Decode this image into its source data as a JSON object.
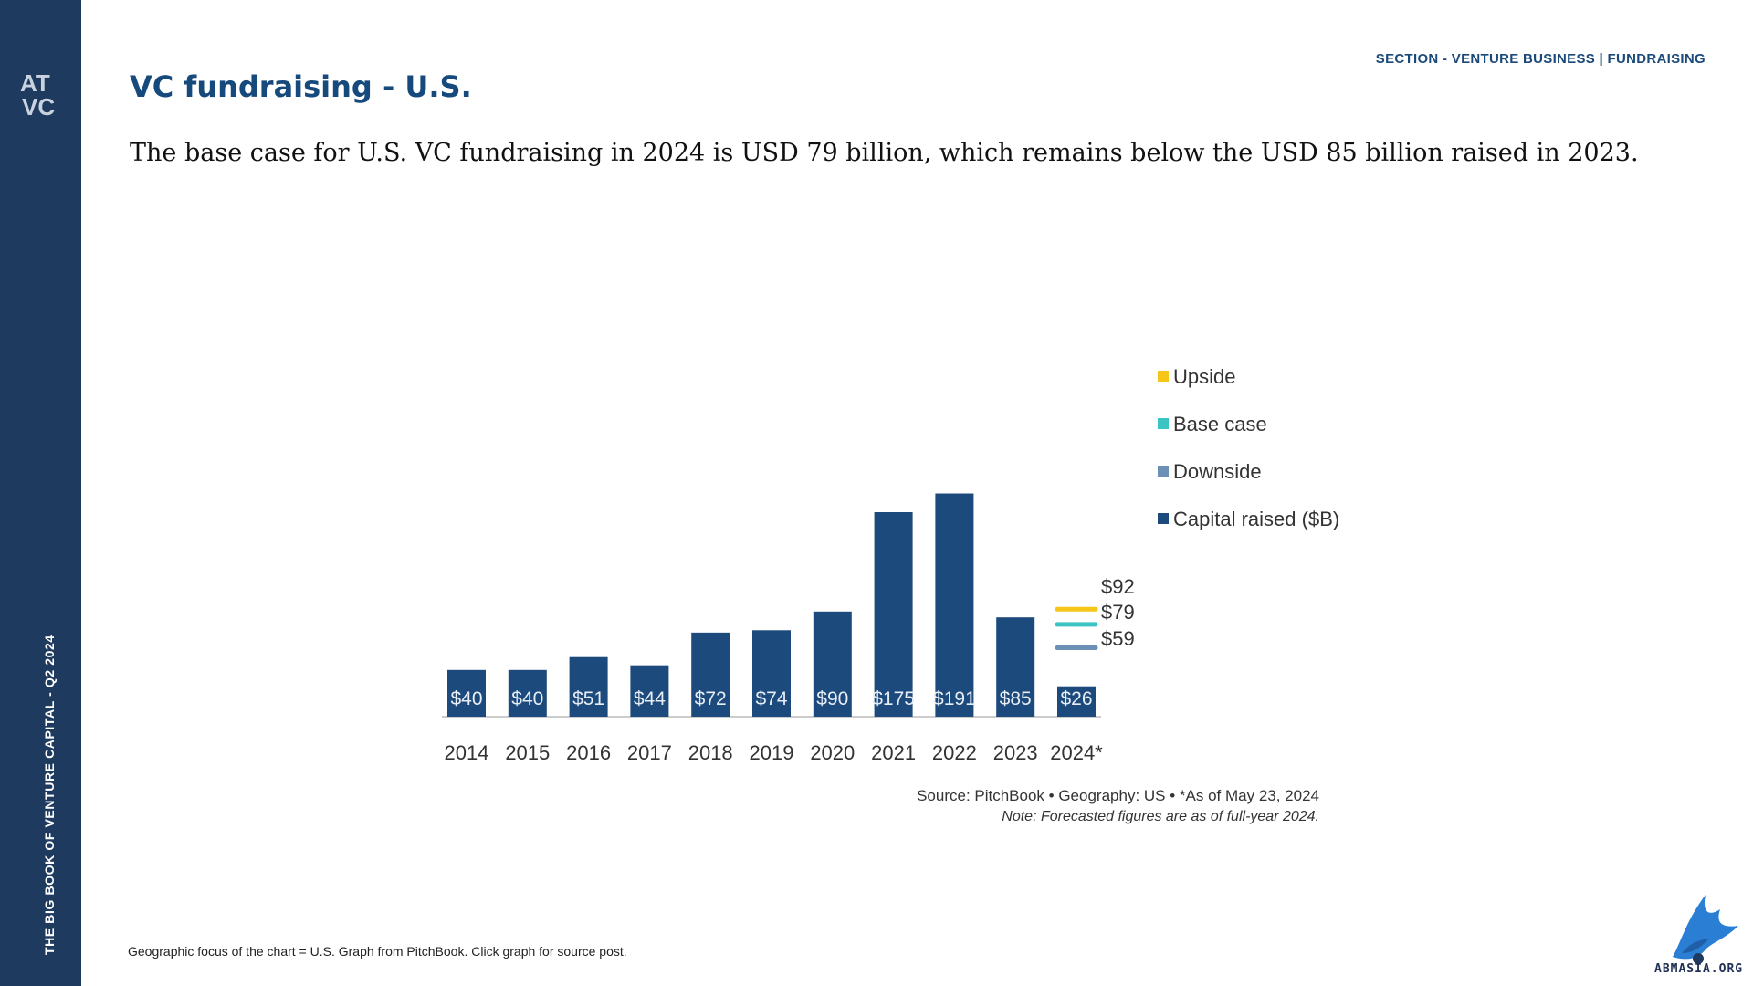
{
  "colors": {
    "sidebar": "#1f3a5f",
    "title": "#174a7c",
    "bar": "#1d4a7c",
    "upside": "#f5c518",
    "base_case": "#3cc4c4",
    "downside": "#6b8fb5"
  },
  "sidebar": {
    "logo_icon": "atvc-logo-icon",
    "vertical_text": "THE BIG BOOK OF VENTURE CAPITAL - Q2 2024"
  },
  "header": {
    "section": "SECTION - VENTURE BUSINESS | FUNDRAISING",
    "title": "VC fundraising - U.S.",
    "subtitle": "The base case for U.S. VC fundraising in 2024 is USD 79 billion, which remains below the USD 85 billion raised in 2023."
  },
  "chart_data": {
    "type": "bar",
    "title": "",
    "xlabel": "",
    "ylabel": "",
    "categories": [
      "2014",
      "2015",
      "2016",
      "2017",
      "2018",
      "2019",
      "2020",
      "2021",
      "2022",
      "2023",
      "2024*"
    ],
    "series": [
      {
        "name": "Capital raised ($B)",
        "values": [
          40,
          40,
          51,
          44,
          72,
          74,
          90,
          175,
          191,
          85,
          26
        ],
        "labels": [
          "$40",
          "$40",
          "$51",
          "$44",
          "$72",
          "$74",
          "$90",
          "$175",
          "$191",
          "$85",
          "$26"
        ]
      }
    ],
    "forecasts": [
      {
        "name": "Upside",
        "value": 92,
        "label": "$92"
      },
      {
        "name": "Base case",
        "value": 79,
        "label": "$79"
      },
      {
        "name": "Downside",
        "value": 59,
        "label": "$59"
      }
    ],
    "legend": [
      "Upside",
      "Base case",
      "Downside",
      "Capital raised ($B)"
    ],
    "legend_position": "right",
    "ylim": [
      0,
      200
    ],
    "grid": false,
    "source": "Source: PitchBook  •  Geography: US  •  *As of May 23, 2024",
    "note": "Note: Forecasted figures are as of full-year 2024."
  },
  "footer": {
    "caption": "Geographic focus of the chart = U.S. Graph from PitchBook. Click graph for source post.",
    "logo_icon": "eagle-logo-icon",
    "logo_text": "ABMASIA.ORG"
  }
}
